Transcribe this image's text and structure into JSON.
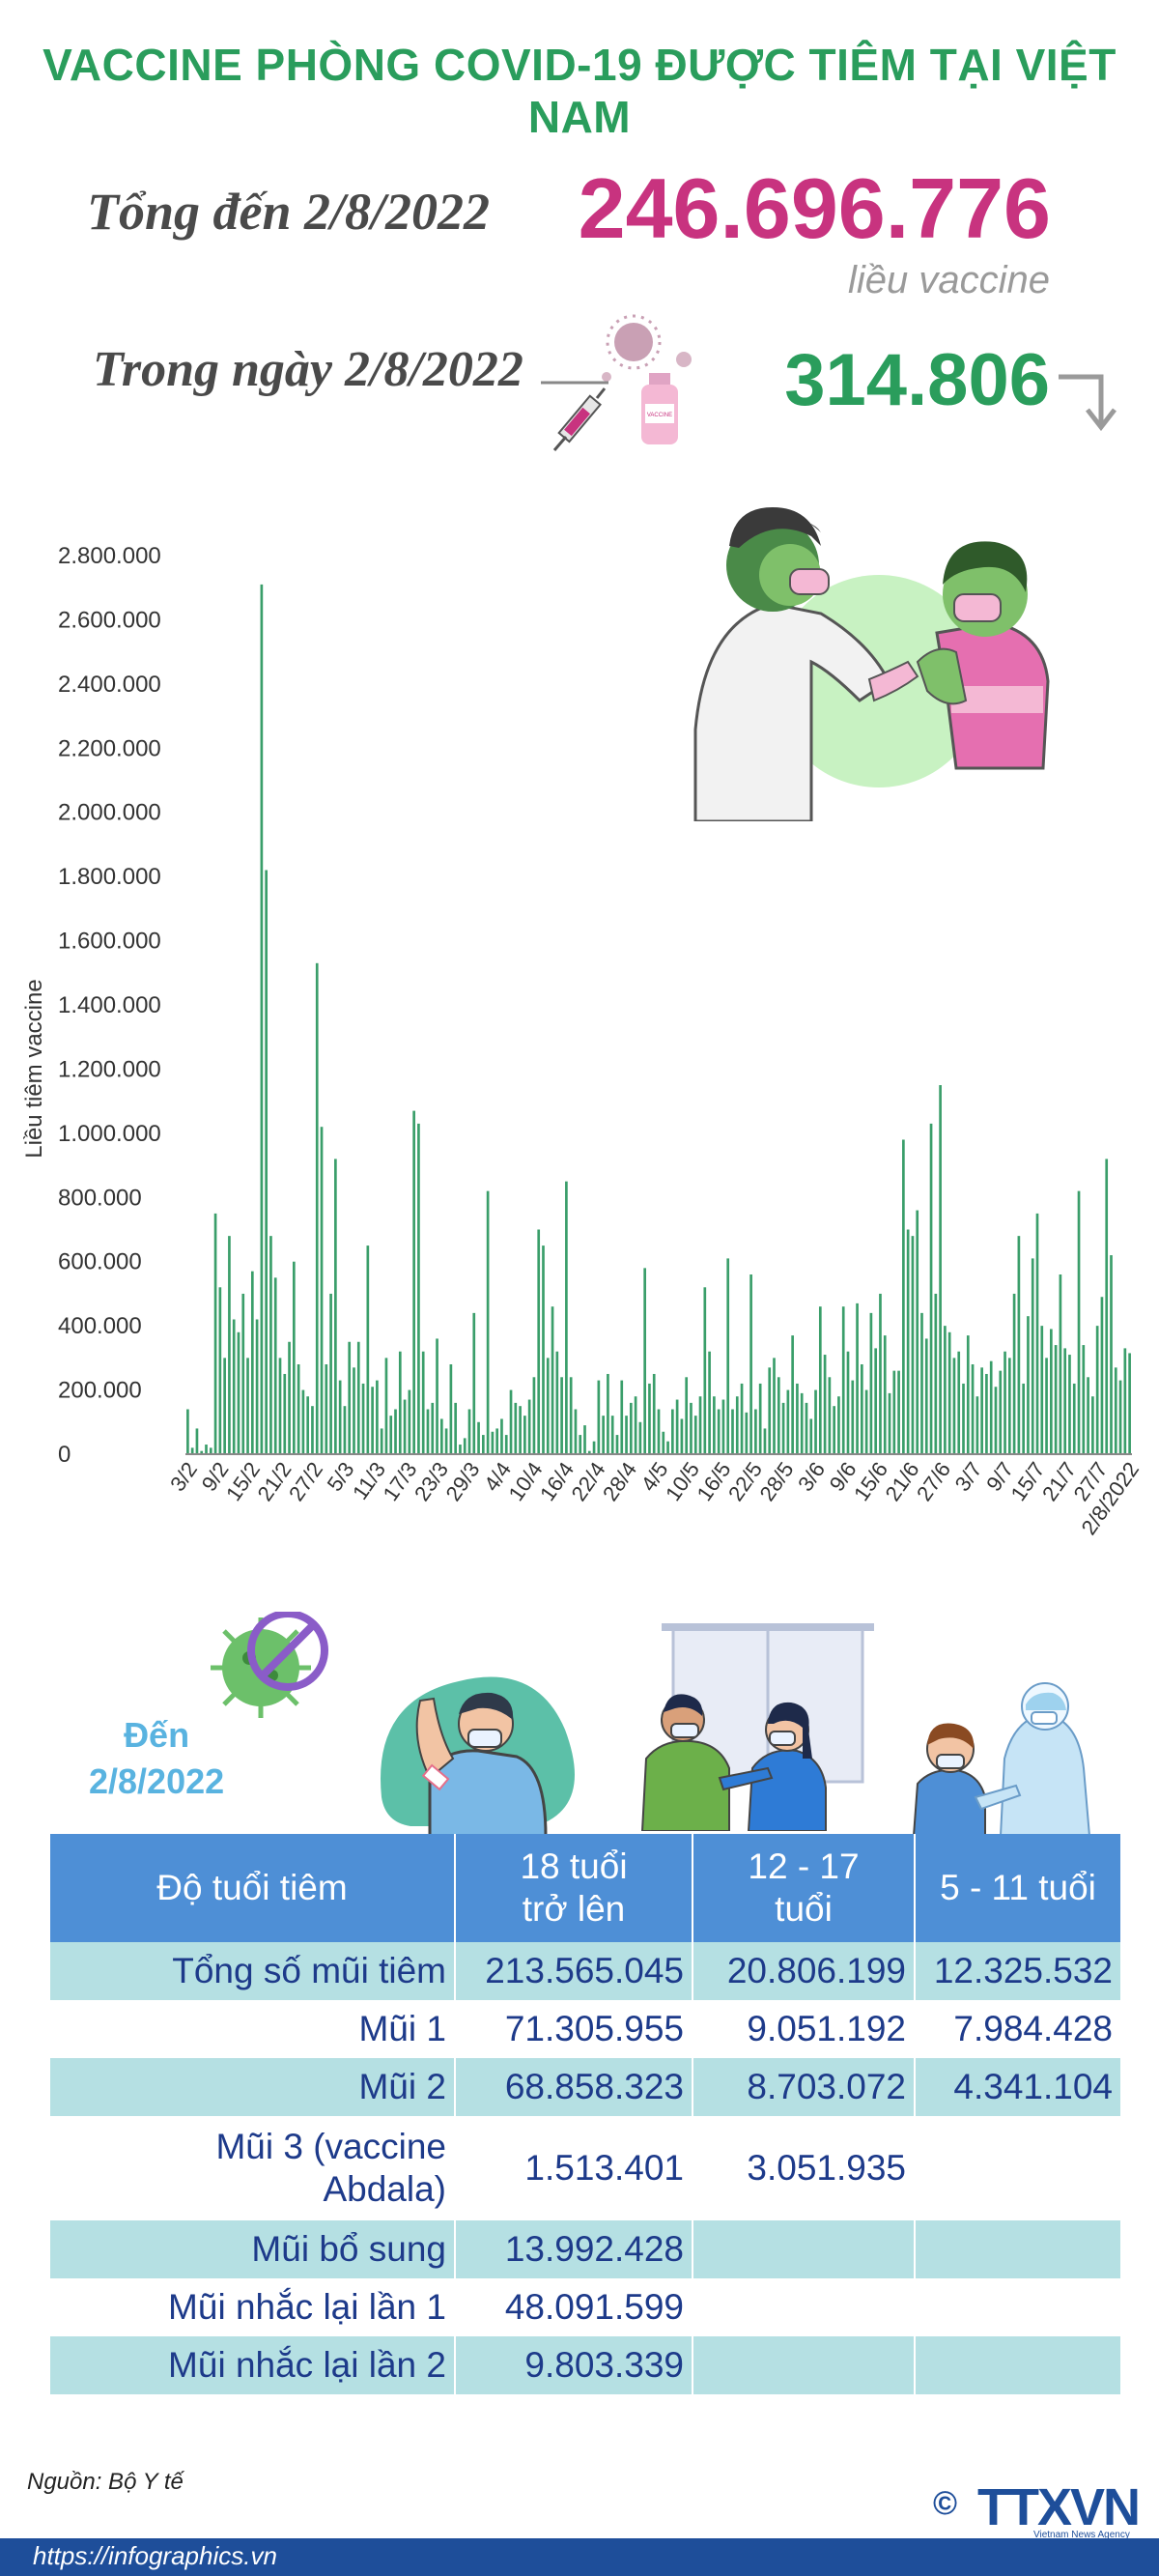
{
  "title": "VACCINE PHÒNG COVID-19 ĐƯỢC TIÊM TẠI VIỆT NAM",
  "summary": {
    "total_label": "Tổng đến 2/8/2022",
    "total_value": "246.696.776",
    "total_unit": "liều vaccine",
    "day_label": "Trong ngày 2/8/2022",
    "day_value": "314.806",
    "trend": "down",
    "vial_label": "VACCINE"
  },
  "chart_data": {
    "type": "bar",
    "ylabel": "Liều tiêm vaccine",
    "xlabel": "",
    "ylim": [
      0,
      2800000
    ],
    "yticks": [
      "0",
      "200.000",
      "400.000",
      "600.000",
      "800.000",
      "1.000.000",
      "1.200.000",
      "1.400.000",
      "1.600.000",
      "1.800.000",
      "2.000.000",
      "2.200.000",
      "2.400.000",
      "2.600.000",
      "2.800.000"
    ],
    "xticks": [
      "3/2",
      "9/2",
      "15/2",
      "21/2",
      "27/2",
      "5/3",
      "11/3",
      "17/3",
      "23/3",
      "29/3",
      "4/4",
      "10/4",
      "16/4",
      "22/4",
      "28/4",
      "4/5",
      "10/5",
      "16/5",
      "22/5",
      "28/5",
      "3/6",
      "9/6",
      "15/6",
      "21/6",
      "27/6",
      "3/7",
      "9/7",
      "15/7",
      "21/7",
      "27/7",
      "2/8/2022"
    ],
    "values": [
      140000,
      20000,
      80000,
      10000,
      30000,
      20000,
      750000,
      520000,
      300000,
      680000,
      420000,
      380000,
      500000,
      300000,
      570000,
      420000,
      2710000,
      1820000,
      680000,
      550000,
      300000,
      250000,
      350000,
      600000,
      280000,
      200000,
      180000,
      150000,
      1530000,
      1020000,
      280000,
      500000,
      920000,
      230000,
      150000,
      350000,
      270000,
      350000,
      220000,
      650000,
      210000,
      230000,
      80000,
      300000,
      120000,
      140000,
      320000,
      170000,
      200000,
      1070000,
      1030000,
      320000,
      140000,
      160000,
      360000,
      110000,
      80000,
      280000,
      160000,
      30000,
      50000,
      140000,
      440000,
      100000,
      60000,
      820000,
      70000,
      80000,
      110000,
      60000,
      200000,
      160000,
      150000,
      120000,
      170000,
      240000,
      700000,
      650000,
      300000,
      460000,
      320000,
      240000,
      850000,
      240000,
      140000,
      60000,
      90000,
      10000,
      40000,
      230000,
      120000,
      250000,
      120000,
      60000,
      230000,
      120000,
      160000,
      180000,
      100000,
      580000,
      220000,
      250000,
      140000,
      70000,
      40000,
      140000,
      170000,
      110000,
      240000,
      160000,
      120000,
      180000,
      520000,
      320000,
      180000,
      140000,
      170000,
      610000,
      140000,
      180000,
      220000,
      130000,
      560000,
      140000,
      220000,
      80000,
      270000,
      300000,
      240000,
      160000,
      200000,
      370000,
      220000,
      190000,
      160000,
      110000,
      200000,
      460000,
      310000,
      240000,
      150000,
      180000,
      460000,
      320000,
      230000,
      470000,
      280000,
      200000,
      440000,
      330000,
      500000,
      370000,
      190000,
      260000,
      260000,
      980000,
      700000,
      680000,
      760000,
      440000,
      360000,
      1030000,
      500000,
      1150000,
      400000,
      380000,
      300000,
      320000,
      220000,
      370000,
      280000,
      180000,
      270000,
      250000,
      290000,
      210000,
      260000,
      320000,
      300000,
      500000,
      680000,
      220000,
      430000,
      610000,
      750000,
      400000,
      300000,
      390000,
      340000,
      560000,
      330000,
      310000,
      220000,
      820000,
      340000,
      240000,
      180000,
      400000,
      490000,
      920000,
      620000,
      270000,
      230000,
      330000,
      314806
    ]
  },
  "age_section": {
    "date_label_line1": "Đến",
    "date_label_line2": "2/8/2022"
  },
  "table": {
    "headers": [
      {
        "line1": "Độ tuổi tiêm",
        "line2": ""
      },
      {
        "line1": "18 tuổi",
        "line2": "trở lên"
      },
      {
        "line1": "12 - 17",
        "line2": "tuổi"
      },
      {
        "line1": "5 - 11 tuổi",
        "line2": ""
      }
    ],
    "rows": [
      {
        "label": "Tổng số mũi tiêm",
        "label2": "",
        "adult": "213.565.045",
        "teen": "20.806.199",
        "child": "12.325.532"
      },
      {
        "label": "Mũi 1",
        "label2": "",
        "adult": "71.305.955",
        "teen": "9.051.192",
        "child": "7.984.428"
      },
      {
        "label": "Mũi 2",
        "label2": "",
        "adult": "68.858.323",
        "teen": "8.703.072",
        "child": "4.341.104"
      },
      {
        "label": "Mũi 3 (vaccine",
        "label2": "Abdala)",
        "adult": "1.513.401",
        "teen": "3.051.935",
        "child": ""
      },
      {
        "label": "Mũi bổ sung",
        "label2": "",
        "adult": "13.992.428",
        "teen": "",
        "child": ""
      },
      {
        "label": "Mũi nhắc lại lần 1",
        "label2": "",
        "adult": "48.091.599",
        "teen": "",
        "child": ""
      },
      {
        "label": "Mũi nhắc lại lần 2",
        "label2": "",
        "adult": "9.803.339",
        "teen": "",
        "child": ""
      }
    ]
  },
  "footer": {
    "source": "Nguồn: Bộ Y tế",
    "url": "https://infographics.vn",
    "copyright": "©",
    "brand": "TTXVN",
    "brand_sub": "Vietnam News Agency"
  },
  "colors": {
    "green": "#2a9d5c",
    "pink": "#c8337f",
    "bar": "#3a9e6a",
    "table_header": "#4e8fd6",
    "table_row_alt": "#b5e0e3",
    "table_text": "#1d3a8a",
    "footer": "#1e4e9a"
  },
  "icons": [
    "syringe-icon",
    "vaccine-vial-icon",
    "arrow-down-right-icon",
    "no-virus-icon"
  ]
}
